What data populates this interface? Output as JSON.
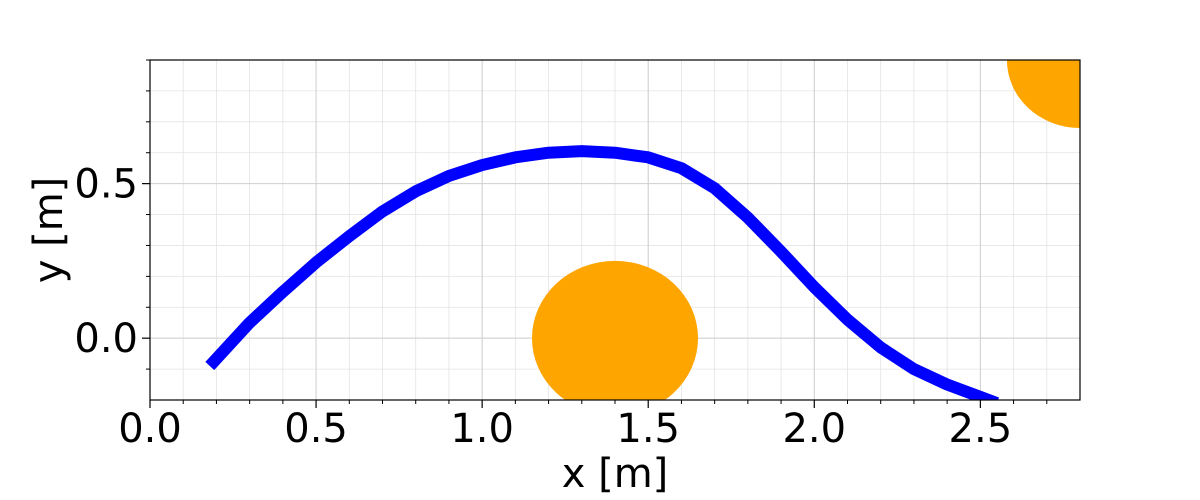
{
  "chart_data": {
    "type": "line",
    "title": "",
    "xlabel": "x [m]",
    "ylabel": "y [m]",
    "xlim": [
      0.0,
      2.8
    ],
    "ylim": [
      -0.2,
      0.9
    ],
    "grid": true,
    "minor_grid": true,
    "x_ticks": [
      0.0,
      0.5,
      1.0,
      1.5,
      2.0,
      2.5
    ],
    "x_tick_labels": [
      "0.0",
      "0.5",
      "1.0",
      "1.5",
      "2.0",
      "2.5"
    ],
    "y_ticks": [
      0.0,
      0.5
    ],
    "y_tick_labels": [
      "0.0",
      "0.5"
    ],
    "series": [
      {
        "color": "#0000ff",
        "x": [
          0.18,
          0.3,
          0.4,
          0.5,
          0.6,
          0.7,
          0.8,
          0.9,
          1.0,
          1.1,
          1.2,
          1.3,
          1.4,
          1.5,
          1.6,
          1.7,
          1.8,
          1.9,
          2.0,
          2.1,
          2.2,
          2.3,
          2.4,
          2.5,
          2.55
        ],
        "y": [
          -0.09,
          0.05,
          0.15,
          0.245,
          0.33,
          0.41,
          0.475,
          0.525,
          0.56,
          0.585,
          0.6,
          0.605,
          0.6,
          0.585,
          0.55,
          0.485,
          0.39,
          0.28,
          0.165,
          0.06,
          -0.03,
          -0.1,
          -0.15,
          -0.19,
          -0.21
        ]
      }
    ],
    "circles": [
      {
        "color": "#ffa500",
        "cx": 1.4,
        "cy": 0.0,
        "r": 0.25
      },
      {
        "color": "#ffa500",
        "cx": 2.8,
        "cy": 0.9,
        "r": 0.22
      }
    ]
  }
}
